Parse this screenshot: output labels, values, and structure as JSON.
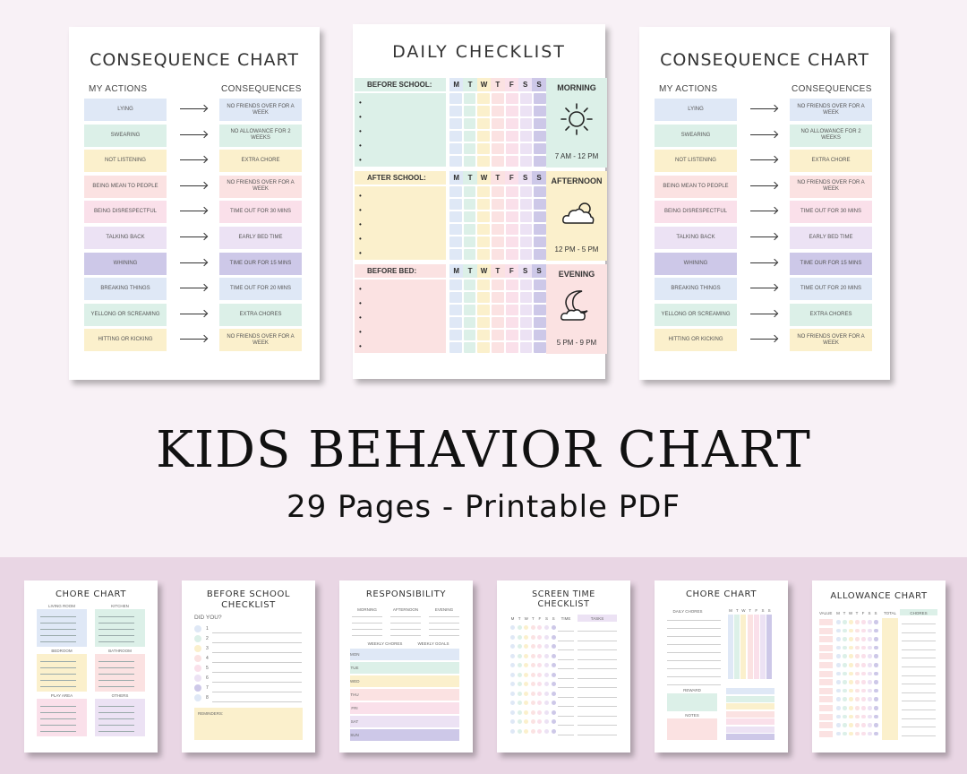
{
  "consequence_chart": {
    "title": "CONSEQUENCE CHART",
    "actions_header": "MY ACTIONS",
    "consequences_header": "CONSEQUENCES",
    "rows": [
      {
        "action": "LYING",
        "consequence": "NO FRIENDS OVER FOR A WEEK",
        "color": "#dfe8f6"
      },
      {
        "action": "SWEARING",
        "consequence": "NO ALLOWANCE FOR 2 WEEKS",
        "color": "#dcf0e8"
      },
      {
        "action": "NOT LISTENING",
        "consequence": "EXTRA CHORE",
        "color": "#fbf0cc"
      },
      {
        "action": "BEING MEAN TO PEOPLE",
        "consequence": "NO FRIENDS OVER FOR A WEEK",
        "color": "#fbe2e2"
      },
      {
        "action": "BEING DISRESPECTFUL",
        "consequence": "TIME OUT FOR 30 MINS",
        "color": "#fae0ea"
      },
      {
        "action": "TALKING BACK",
        "consequence": "EARLY BED TIME",
        "color": "#ece2f4"
      },
      {
        "action": "WHINING",
        "consequence": "TIME OUR FOR 15 MINS",
        "color": "#cdc8e8"
      },
      {
        "action": "BREAKING THINGS",
        "consequence": "TIME OUT FOR 20 MINS",
        "color": "#dfe8f6"
      },
      {
        "action": "YELLONG OR SCREAMING",
        "consequence": "EXTRA CHORES",
        "color": "#dcf0e8"
      },
      {
        "action": "HITTING OR KICKING",
        "consequence": "NO FRIENDS OVER FOR A WEEK",
        "color": "#fbf0cc"
      }
    ]
  },
  "daily_checklist": {
    "title": "DAILY CHECKLIST",
    "days": [
      "M",
      "T",
      "W",
      "T",
      "F",
      "S",
      "S"
    ],
    "day_colors": [
      "#dfe8f6",
      "#dcf0e8",
      "#fbf0cc",
      "#fbe2e2",
      "#fae0ea",
      "#ece2f4",
      "#cdc8e8"
    ],
    "sections": [
      {
        "label": "BEFORE SCHOOL:",
        "period": "MORNING",
        "time": "7 AM - 12 PM",
        "color": "#dcf0e8",
        "icon": "sun-icon"
      },
      {
        "label": "AFTER SCHOOL:",
        "period": "AFTERNOON",
        "time": "12 PM - 5 PM",
        "color": "#fbf0cc",
        "icon": "cloud-sun-icon"
      },
      {
        "label": "BEFORE BED:",
        "period": "EVENING",
        "time": "5 PM - 9 PM",
        "color": "#fbe2e2",
        "icon": "moon-cloud-icon"
      }
    ]
  },
  "headline": {
    "title": "KIDS BEHAVIOR CHART",
    "subtitle": "29 Pages - Printable PDF"
  },
  "thumbnails": {
    "chore_chart": {
      "title": "CHORE CHART",
      "rooms": [
        "LIVING ROOM",
        "KITCHEN",
        "BEDROOM",
        "BATHROOM",
        "PLAY AREA",
        "OTHERS"
      ]
    },
    "before_school": {
      "title": "BEFORE SCHOOL CHECKLIST",
      "did_you": "DID YOU?",
      "numbers": [
        "1",
        "2",
        "3",
        "4",
        "5",
        "6",
        "7",
        "8"
      ],
      "reminders": "REMINDERS:"
    },
    "responsibility": {
      "title": "RESPONSIBILITY",
      "cols": [
        "MORNING",
        "AFTERNOON",
        "EVENING"
      ],
      "weekly_chores": "WEEKLY CHORES",
      "weekly_goals": "WEEKLY GOALS",
      "days": [
        "MON",
        "TUE",
        "WED",
        "THU",
        "FRI",
        "SAT",
        "SUN"
      ]
    },
    "screen_time": {
      "title": "SCREEN TIME CHECKLIST",
      "days": [
        "M",
        "T",
        "W",
        "T",
        "F",
        "S",
        "S"
      ],
      "time": "TIME",
      "tasks": "TASKS"
    },
    "chore_chart_2": {
      "title": "CHORE CHART",
      "daily_chores": "DAILY CHORES",
      "reward": "REWARD",
      "notes": "NOTES",
      "days": [
        "M",
        "T",
        "W",
        "T",
        "F",
        "S",
        "S"
      ]
    },
    "allowance_chart": {
      "title": "ALLOWANCE CHART",
      "value": "VALUE",
      "days": [
        "M",
        "T",
        "W",
        "T",
        "F",
        "S",
        "S"
      ],
      "total": "TOTAL",
      "chores": "CHORES"
    }
  }
}
